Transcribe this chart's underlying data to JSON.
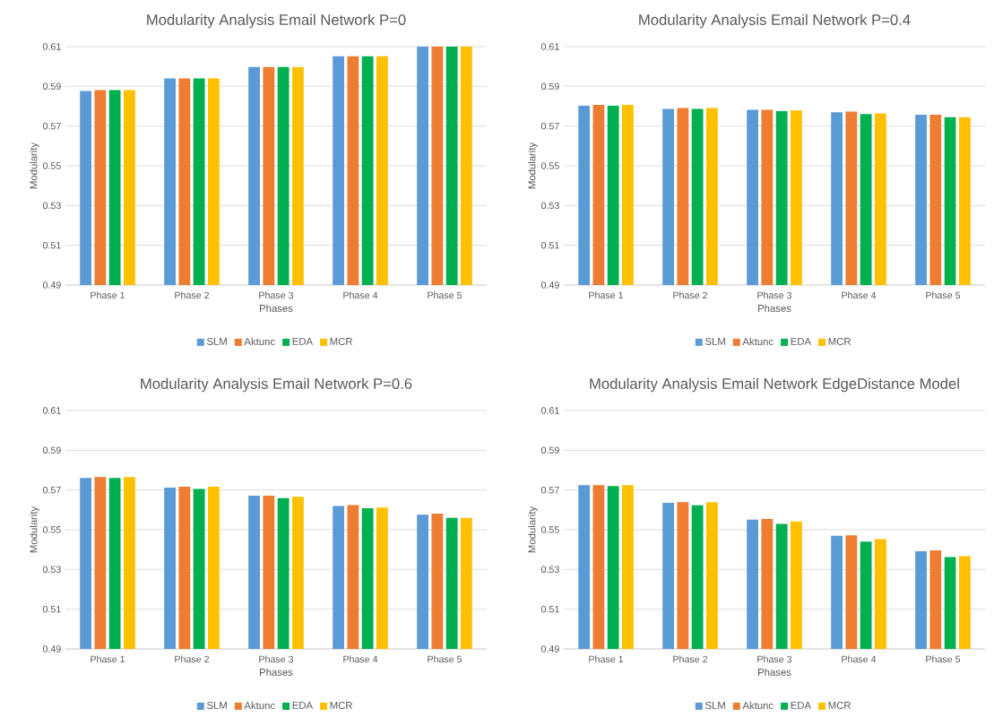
{
  "chart_data": [
    {
      "type": "bar",
      "title": "Modularity Analysis Email Network P=0",
      "xlabel": "Phases",
      "ylabel": "Modularity",
      "categories": [
        "Phase 1",
        "Phase 2",
        "Phase 3",
        "Phase 4",
        "Phase 5"
      ],
      "series": [
        {
          "name": "SLM",
          "color": "#5b9bd5",
          "values": [
            0.5877,
            0.594,
            0.5997,
            0.6052,
            0.61
          ]
        },
        {
          "name": "Aktunc",
          "color": "#ed7d31",
          "values": [
            0.5881,
            0.594,
            0.5997,
            0.6052,
            0.61
          ]
        },
        {
          "name": "EDA",
          "color": "#00b050",
          "values": [
            0.5881,
            0.594,
            0.5997,
            0.6052,
            0.61
          ]
        },
        {
          "name": "MCR",
          "color": "#ffc000",
          "values": [
            0.5881,
            0.594,
            0.5997,
            0.6052,
            0.61
          ]
        }
      ],
      "ylim": [
        0.49,
        0.61
      ],
      "yticks": [
        0.49,
        0.51,
        0.53,
        0.55,
        0.57,
        0.59,
        0.61
      ],
      "grid": "y",
      "legend": "bottom"
    },
    {
      "type": "bar",
      "title": "Modularity Analysis Email Network P=0.4",
      "xlabel": "Phases",
      "ylabel": "Modularity",
      "categories": [
        "Phase 1",
        "Phase 2",
        "Phase 3",
        "Phase 4",
        "Phase 5"
      ],
      "series": [
        {
          "name": "SLM",
          "color": "#5b9bd5",
          "values": [
            0.5803,
            0.5787,
            0.5782,
            0.5769,
            0.5757
          ]
        },
        {
          "name": "Aktunc",
          "color": "#ed7d31",
          "values": [
            0.5807,
            0.5791,
            0.5782,
            0.5773,
            0.5757
          ]
        },
        {
          "name": "EDA",
          "color": "#00b050",
          "values": [
            0.5803,
            0.5787,
            0.5775,
            0.5761,
            0.5745
          ]
        },
        {
          "name": "MCR",
          "color": "#ffc000",
          "values": [
            0.5807,
            0.5791,
            0.5778,
            0.5764,
            0.5745
          ]
        }
      ],
      "ylim": [
        0.49,
        0.61
      ],
      "yticks": [
        0.49,
        0.51,
        0.53,
        0.55,
        0.57,
        0.59,
        0.61
      ],
      "grid": "y",
      "legend": "bottom"
    },
    {
      "type": "bar",
      "title": "Modularity Analysis Email Network P=0.6",
      "xlabel": "Phases",
      "ylabel": "Modularity",
      "categories": [
        "Phase 1",
        "Phase 2",
        "Phase 3",
        "Phase 4",
        "Phase 5"
      ],
      "series": [
        {
          "name": "SLM",
          "color": "#5b9bd5",
          "values": [
            0.576,
            0.5712,
            0.5671,
            0.562,
            0.5576
          ]
        },
        {
          "name": "Aktunc",
          "color": "#ed7d31",
          "values": [
            0.5765,
            0.5717,
            0.5671,
            0.5624,
            0.5581
          ]
        },
        {
          "name": "EDA",
          "color": "#00b050",
          "values": [
            0.576,
            0.5705,
            0.5659,
            0.5608,
            0.556
          ]
        },
        {
          "name": "MCR",
          "color": "#ffc000",
          "values": [
            0.5765,
            0.5717,
            0.5666,
            0.5612,
            0.556
          ]
        }
      ],
      "ylim": [
        0.49,
        0.61
      ],
      "yticks": [
        0.49,
        0.51,
        0.53,
        0.55,
        0.57,
        0.59,
        0.61
      ],
      "grid": "y",
      "legend": "bottom"
    },
    {
      "type": "bar",
      "title": "Modularity Analysis Email Network EdgeDistance Model",
      "xlabel": "Phases",
      "ylabel": "Modularity",
      "categories": [
        "Phase 1",
        "Phase 2",
        "Phase 3",
        "Phase 4",
        "Phase 5"
      ],
      "series": [
        {
          "name": "SLM",
          "color": "#5b9bd5",
          "values": [
            0.5724,
            0.5635,
            0.5551,
            0.5469,
            0.5392
          ]
        },
        {
          "name": "Aktunc",
          "color": "#ed7d31",
          "values": [
            0.5724,
            0.5639,
            0.5554,
            0.5472,
            0.5396
          ]
        },
        {
          "name": "EDA",
          "color": "#00b050",
          "values": [
            0.572,
            0.5623,
            0.5529,
            0.544,
            0.5362
          ]
        },
        {
          "name": "MCR",
          "color": "#ffc000",
          "values": [
            0.5724,
            0.5639,
            0.5542,
            0.5453,
            0.5367
          ]
        }
      ],
      "ylim": [
        0.49,
        0.61
      ],
      "yticks": [
        0.49,
        0.51,
        0.53,
        0.55,
        0.57,
        0.59,
        0.61
      ],
      "grid": "y",
      "legend": "bottom"
    }
  ]
}
